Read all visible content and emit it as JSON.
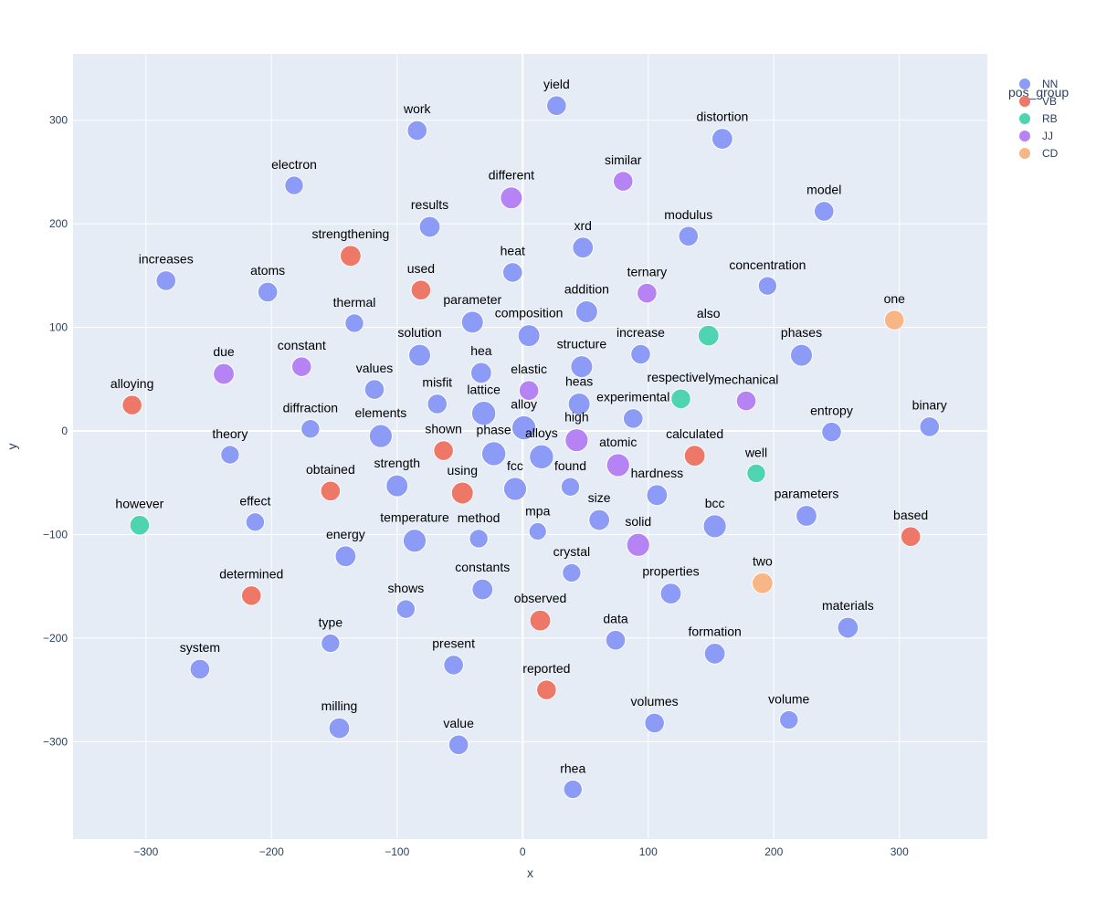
{
  "chart_data": {
    "type": "scatter",
    "title": "",
    "xlabel": "x",
    "ylabel": "y",
    "xlim": [
      -358,
      370
    ],
    "ylim": [
      -394,
      364
    ],
    "xticks": [
      -300,
      -200,
      -100,
      0,
      100,
      200,
      300
    ],
    "yticks": [
      -300,
      -200,
      -100,
      0,
      100,
      200,
      300
    ],
    "grid": true,
    "legend": {
      "title": "pos_group",
      "placement": "top-right",
      "entries": [
        {
          "name": "NN",
          "color": "#8c9bf6"
        },
        {
          "name": "VB",
          "color": "#ee7867"
        },
        {
          "name": "RB",
          "color": "#4ed4b0"
        },
        {
          "name": "JJ",
          "color": "#b583f4"
        },
        {
          "name": "CD",
          "color": "#f8b686"
        }
      ]
    },
    "colors": {
      "plot_bg": "#e5ecf6",
      "grid": "#ffffff",
      "zeroline": "#ffffff"
    },
    "points": [
      {
        "label": "yield",
        "group": "NN",
        "x": 27,
        "y": 314,
        "size": 0.4
      },
      {
        "label": "work",
        "group": "NN",
        "x": -84,
        "y": 290,
        "size": 0.4
      },
      {
        "label": "distortion",
        "group": "NN",
        "x": 159,
        "y": 282,
        "size": 0.45
      },
      {
        "label": "electron",
        "group": "NN",
        "x": -182,
        "y": 237,
        "size": 0.35
      },
      {
        "label": "different",
        "group": "JJ",
        "x": -9,
        "y": 225,
        "size": 0.5
      },
      {
        "label": "similar",
        "group": "JJ",
        "x": 80,
        "y": 241,
        "size": 0.4
      },
      {
        "label": "model",
        "group": "NN",
        "x": 240,
        "y": 212,
        "size": 0.4
      },
      {
        "label": "results",
        "group": "NN",
        "x": -74,
        "y": 197,
        "size": 0.45
      },
      {
        "label": "xrd",
        "group": "NN",
        "x": 48,
        "y": 177,
        "size": 0.45
      },
      {
        "label": "modulus",
        "group": "NN",
        "x": 132,
        "y": 188,
        "size": 0.4
      },
      {
        "label": "strengthening",
        "group": "VB",
        "x": -137,
        "y": 169,
        "size": 0.45
      },
      {
        "label": "increases",
        "group": "NN",
        "x": -284,
        "y": 145,
        "size": 0.4
      },
      {
        "label": "heat",
        "group": "NN",
        "x": -8,
        "y": 153,
        "size": 0.4
      },
      {
        "label": "atoms",
        "group": "NN",
        "x": -203,
        "y": 134,
        "size": 0.4
      },
      {
        "label": "used",
        "group": "VB",
        "x": -81,
        "y": 136,
        "size": 0.4
      },
      {
        "label": "concentration",
        "group": "NN",
        "x": 195,
        "y": 140,
        "size": 0.35
      },
      {
        "label": "ternary",
        "group": "JJ",
        "x": 99,
        "y": 133,
        "size": 0.4
      },
      {
        "label": "addition",
        "group": "NN",
        "x": 51,
        "y": 115,
        "size": 0.5
      },
      {
        "label": "thermal",
        "group": "NN",
        "x": -134,
        "y": 104,
        "size": 0.35
      },
      {
        "label": "parameter",
        "group": "NN",
        "x": -40,
        "y": 105,
        "size": 0.5
      },
      {
        "label": "one",
        "group": "CD",
        "x": 296,
        "y": 107,
        "size": 0.4
      },
      {
        "label": "composition",
        "group": "NN",
        "x": 5,
        "y": 92,
        "size": 0.5
      },
      {
        "label": "also",
        "group": "RB",
        "x": 148,
        "y": 92,
        "size": 0.45
      },
      {
        "label": "solution",
        "group": "NN",
        "x": -82,
        "y": 73,
        "size": 0.5
      },
      {
        "label": "increase",
        "group": "NN",
        "x": 94,
        "y": 74,
        "size": 0.4
      },
      {
        "label": "phases",
        "group": "NN",
        "x": 222,
        "y": 73,
        "size": 0.5
      },
      {
        "label": "due",
        "group": "JJ",
        "x": -238,
        "y": 55,
        "size": 0.45
      },
      {
        "label": "constant",
        "group": "JJ",
        "x": -176,
        "y": 62,
        "size": 0.4
      },
      {
        "label": "hea",
        "group": "NN",
        "x": -33,
        "y": 56,
        "size": 0.45
      },
      {
        "label": "structure",
        "group": "NN",
        "x": 47,
        "y": 62,
        "size": 0.5
      },
      {
        "label": "values",
        "group": "NN",
        "x": -118,
        "y": 40,
        "size": 0.4
      },
      {
        "label": "elastic",
        "group": "JJ",
        "x": 5,
        "y": 39,
        "size": 0.4
      },
      {
        "label": "misfit",
        "group": "NN",
        "x": -68,
        "y": 26,
        "size": 0.4
      },
      {
        "label": "heas",
        "group": "NN",
        "x": 45,
        "y": 26,
        "size": 0.5
      },
      {
        "label": "respectively",
        "group": "RB",
        "x": 126,
        "y": 31,
        "size": 0.4
      },
      {
        "label": "mechanical",
        "group": "JJ",
        "x": 178,
        "y": 29,
        "size": 0.4
      },
      {
        "label": "alloying",
        "group": "VB",
        "x": -311,
        "y": 25,
        "size": 0.4
      },
      {
        "label": "lattice",
        "group": "NN",
        "x": -31,
        "y": 17,
        "size": 0.6
      },
      {
        "label": "diffraction",
        "group": "NN",
        "x": -169,
        "y": 2,
        "size": 0.35
      },
      {
        "label": "alloy",
        "group": "NN",
        "x": 1,
        "y": 3,
        "size": 0.6
      },
      {
        "label": "experimental",
        "group": "NN",
        "x": 88,
        "y": 12,
        "size": 0.4
      },
      {
        "label": "binary",
        "group": "NN",
        "x": 324,
        "y": 4,
        "size": 0.4
      },
      {
        "label": "elements",
        "group": "NN",
        "x": -113,
        "y": -5,
        "size": 0.55
      },
      {
        "label": "entropy",
        "group": "NN",
        "x": 246,
        "y": -1,
        "size": 0.4
      },
      {
        "label": "high",
        "group": "JJ",
        "x": 43,
        "y": -9,
        "size": 0.55
      },
      {
        "label": "theory",
        "group": "NN",
        "x": -233,
        "y": -23,
        "size": 0.35
      },
      {
        "label": "shown",
        "group": "VB",
        "x": -63,
        "y": -19,
        "size": 0.4
      },
      {
        "label": "phase",
        "group": "NN",
        "x": -23,
        "y": -22,
        "size": 0.6
      },
      {
        "label": "alloys",
        "group": "NN",
        "x": 15,
        "y": -25,
        "size": 0.6
      },
      {
        "label": "calculated",
        "group": "VB",
        "x": 137,
        "y": -24,
        "size": 0.45
      },
      {
        "label": "atomic",
        "group": "JJ",
        "x": 76,
        "y": -33,
        "size": 0.55
      },
      {
        "label": "well",
        "group": "RB",
        "x": 186,
        "y": -41,
        "size": 0.35
      },
      {
        "label": "obtained",
        "group": "VB",
        "x": -153,
        "y": -58,
        "size": 0.4
      },
      {
        "label": "strength",
        "group": "NN",
        "x": -100,
        "y": -53,
        "size": 0.5
      },
      {
        "label": "using",
        "group": "VB",
        "x": -48,
        "y": -60,
        "size": 0.5
      },
      {
        "label": "fcc",
        "group": "NN",
        "x": -6,
        "y": -56,
        "size": 0.55
      },
      {
        "label": "found",
        "group": "NN",
        "x": 38,
        "y": -54,
        "size": 0.35
      },
      {
        "label": "hardness",
        "group": "NN",
        "x": 107,
        "y": -62,
        "size": 0.45
      },
      {
        "label": "however",
        "group": "RB",
        "x": -305,
        "y": -91,
        "size": 0.4
      },
      {
        "label": "effect",
        "group": "NN",
        "x": -213,
        "y": -88,
        "size": 0.35
      },
      {
        "label": "size",
        "group": "NN",
        "x": 61,
        "y": -86,
        "size": 0.45
      },
      {
        "label": "bcc",
        "group": "NN",
        "x": 153,
        "y": -92,
        "size": 0.55
      },
      {
        "label": "parameters",
        "group": "NN",
        "x": 226,
        "y": -82,
        "size": 0.45
      },
      {
        "label": "mpa",
        "group": "NN",
        "x": 12,
        "y": -97,
        "size": 0.3
      },
      {
        "label": "temperature",
        "group": "NN",
        "x": -86,
        "y": -106,
        "size": 0.55
      },
      {
        "label": "method",
        "group": "NN",
        "x": -35,
        "y": -104,
        "size": 0.35
      },
      {
        "label": "solid",
        "group": "JJ",
        "x": 92,
        "y": -110,
        "size": 0.55
      },
      {
        "label": "based",
        "group": "VB",
        "x": 309,
        "y": -102,
        "size": 0.4
      },
      {
        "label": "energy",
        "group": "NN",
        "x": -141,
        "y": -121,
        "size": 0.45
      },
      {
        "label": "crystal",
        "group": "NN",
        "x": 39,
        "y": -137,
        "size": 0.35
      },
      {
        "label": "two",
        "group": "CD",
        "x": 191,
        "y": -147,
        "size": 0.45
      },
      {
        "label": "determined",
        "group": "VB",
        "x": -216,
        "y": -159,
        "size": 0.4
      },
      {
        "label": "constants",
        "group": "NN",
        "x": -32,
        "y": -153,
        "size": 0.45
      },
      {
        "label": "properties",
        "group": "NN",
        "x": 118,
        "y": -157,
        "size": 0.45
      },
      {
        "label": "shows",
        "group": "NN",
        "x": -93,
        "y": -172,
        "size": 0.35
      },
      {
        "label": "observed",
        "group": "VB",
        "x": 14,
        "y": -183,
        "size": 0.45
      },
      {
        "label": "materials",
        "group": "NN",
        "x": 259,
        "y": -190,
        "size": 0.45
      },
      {
        "label": "type",
        "group": "NN",
        "x": -153,
        "y": -205,
        "size": 0.35
      },
      {
        "label": "data",
        "group": "NN",
        "x": 74,
        "y": -202,
        "size": 0.4
      },
      {
        "label": "formation",
        "group": "NN",
        "x": 153,
        "y": -215,
        "size": 0.45
      },
      {
        "label": "present",
        "group": "NN",
        "x": -55,
        "y": -226,
        "size": 0.4
      },
      {
        "label": "system",
        "group": "NN",
        "x": -257,
        "y": -230,
        "size": 0.4
      },
      {
        "label": "reported",
        "group": "VB",
        "x": 19,
        "y": -250,
        "size": 0.4
      },
      {
        "label": "milling",
        "group": "NN",
        "x": -146,
        "y": -287,
        "size": 0.45
      },
      {
        "label": "volumes",
        "group": "NN",
        "x": 105,
        "y": -282,
        "size": 0.4
      },
      {
        "label": "volume",
        "group": "NN",
        "x": 212,
        "y": -279,
        "size": 0.35
      },
      {
        "label": "value",
        "group": "NN",
        "x": -51,
        "y": -303,
        "size": 0.4
      },
      {
        "label": "rhea",
        "group": "NN",
        "x": 40,
        "y": -346,
        "size": 0.35
      }
    ]
  }
}
